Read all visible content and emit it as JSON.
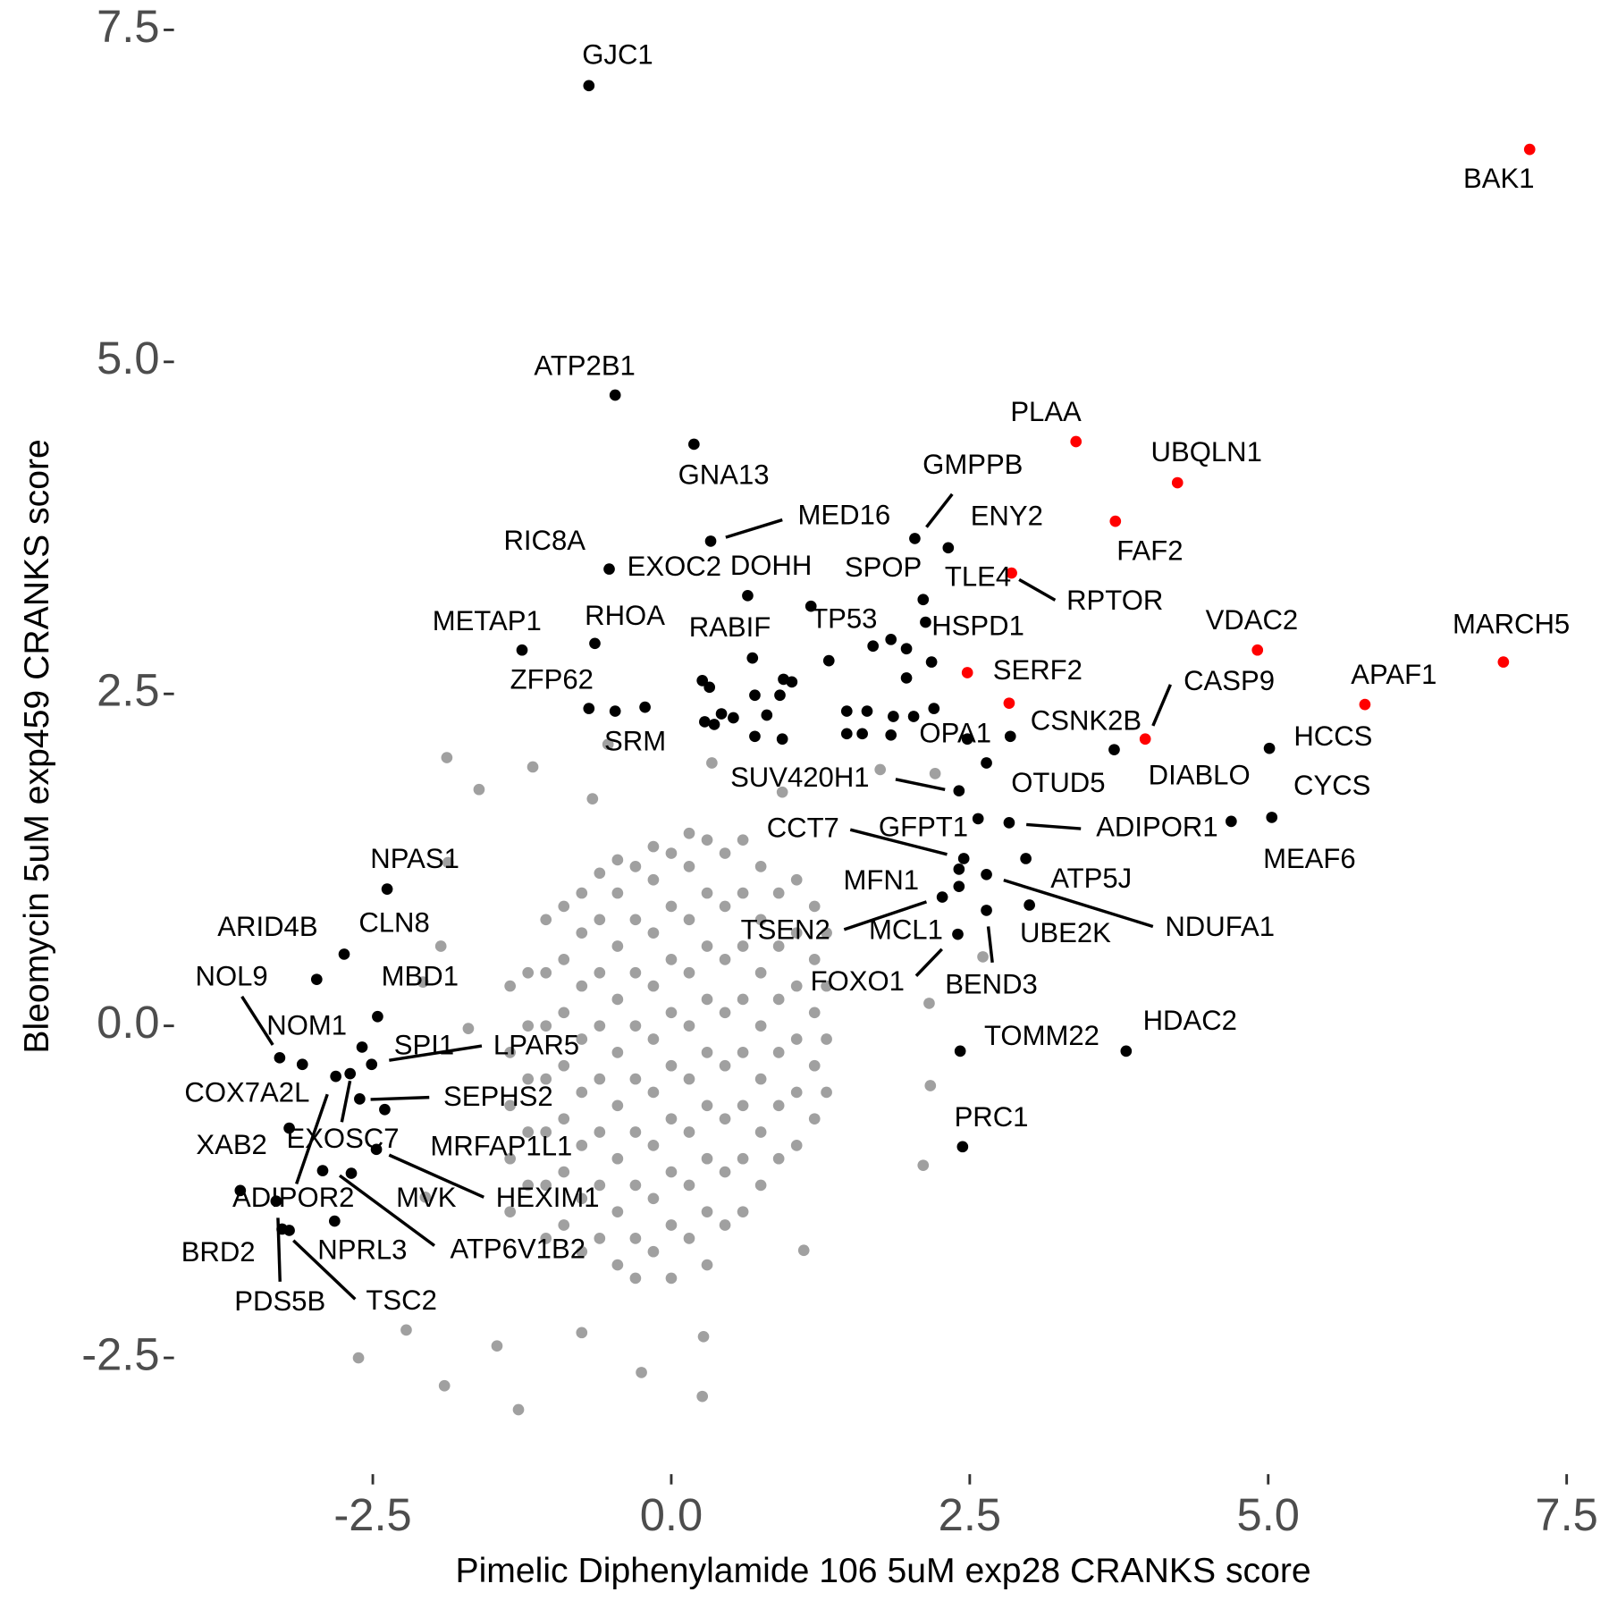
{
  "chart_data": {
    "type": "scatter",
    "xlabel": "Pimelic Diphenylamide 106 5uM exp28 CRANKS score",
    "ylabel": "Bleomycin 5uM exp459 CRANKS score",
    "xlim": [
      -4.2,
      7.57
    ],
    "ylim": [
      -3.36,
      7.57
    ],
    "xticks": [
      -2.5,
      {
        "value": 0,
        "label": "0.0"
      },
      2.5,
      {
        "value": 5,
        "label": "5.0"
      },
      7.5
    ],
    "yticks": [
      -2.5,
      {
        "value": 0,
        "label": "0.0"
      },
      2.5,
      {
        "value": 5,
        "label": "5.0"
      },
      7.5
    ],
    "grid": false,
    "series": [
      {
        "color": "#a0a0a0",
        "x": [
          -1.35,
          -1.35,
          -1.35,
          -1.35,
          -1.35,
          -1.05,
          -1.05,
          -1.05,
          -1.05,
          -1.05,
          -1.05,
          -1.05,
          -0.75,
          -0.75,
          -0.75,
          -0.75,
          -0.75,
          -0.75,
          -0.75,
          -0.75,
          -0.45,
          -0.45,
          -0.45,
          -0.45,
          -0.45,
          -0.45,
          -0.45,
          -0.45,
          -0.45,
          -0.15,
          -0.15,
          -0.15,
          -0.15,
          -0.15,
          -0.15,
          -0.15,
          -0.15,
          -0.15,
          0.15,
          0.15,
          0.15,
          0.15,
          0.15,
          0.15,
          0.15,
          0.15,
          0.15,
          0.45,
          0.45,
          0.45,
          0.45,
          0.45,
          0.45,
          0.45,
          0.45,
          0.75,
          0.75,
          0.75,
          0.75,
          0.75,
          0.75,
          0.75,
          1.05,
          1.05,
          1.05,
          1.05,
          1.05,
          1.05,
          1.3,
          1.3,
          1.3,
          1.3,
          -1.2,
          -1.2,
          -1.2,
          -1.2,
          -1.2,
          -0.9,
          -0.9,
          -0.9,
          -0.9,
          -0.9,
          -0.9,
          -0.9,
          -0.6,
          -0.6,
          -0.6,
          -0.6,
          -0.6,
          -0.6,
          -0.6,
          -0.6,
          -0.3,
          -0.3,
          -0.3,
          -0.3,
          -0.3,
          -0.3,
          -0.3,
          -0.3,
          -0.3,
          0,
          0,
          0,
          0,
          0,
          0,
          0,
          0,
          0,
          0.3,
          0.3,
          0.3,
          0.3,
          0.3,
          0.3,
          0.3,
          0.3,
          0.3,
          0.6,
          0.6,
          0.6,
          0.6,
          0.6,
          0.6,
          0.6,
          0.6,
          0.9,
          0.9,
          0.9,
          0.9,
          0.9,
          0.9,
          1.2,
          1.2,
          1.2,
          1.2,
          1.2,
          -1.88,
          -1.16,
          -1.61,
          -0.66,
          -0.53,
          0.34,
          0.93,
          1.75,
          2.21,
          -1.87,
          -1.93,
          -2.08,
          -1.7,
          2.16,
          2.17,
          2.11,
          -2.62,
          -1.9,
          -1.28,
          -0.25,
          0.26,
          -2.22,
          -1.46,
          -0.75,
          0.27,
          1.11,
          -2.06,
          2.61
        ],
        "values": [
          -1.4,
          -1.0,
          -0.6,
          -0.2,
          0.3,
          -1.6,
          -1.2,
          -0.8,
          -0.4,
          0.0,
          0.4,
          0.8,
          -1.7,
          -1.3,
          -0.9,
          -0.5,
          -0.1,
          0.3,
          0.7,
          1.0,
          -1.8,
          -1.4,
          -1.0,
          -0.6,
          -0.2,
          0.2,
          0.6,
          1.0,
          1.25,
          -1.7,
          -1.3,
          -0.9,
          -0.5,
          -0.1,
          0.3,
          0.7,
          1.1,
          1.35,
          -1.6,
          -1.2,
          -0.8,
          -0.4,
          0.0,
          0.4,
          0.8,
          1.2,
          1.45,
          -1.5,
          -1.1,
          -0.7,
          -0.3,
          0.1,
          0.5,
          0.9,
          1.3,
          -1.2,
          -0.8,
          -0.4,
          0.0,
          0.4,
          0.8,
          1.2,
          -0.9,
          -0.5,
          -0.1,
          0.3,
          0.7,
          1.1,
          -0.5,
          -0.1,
          0.3,
          0.7,
          -1.2,
          -0.8,
          -0.4,
          0.0,
          0.4,
          -1.5,
          -1.1,
          -0.7,
          -0.3,
          0.1,
          0.5,
          0.9,
          -1.6,
          -1.2,
          -0.8,
          -0.4,
          0.0,
          0.4,
          0.8,
          1.15,
          -1.9,
          -1.6,
          -1.2,
          -0.8,
          -0.4,
          0.0,
          0.4,
          0.8,
          1.2,
          -1.9,
          -1.5,
          -1.1,
          -0.7,
          -0.3,
          0.1,
          0.5,
          0.9,
          1.3,
          -1.8,
          -1.4,
          -1.0,
          -0.6,
          -0.2,
          0.2,
          0.6,
          1.0,
          1.4,
          -1.4,
          -1.0,
          -0.6,
          -0.2,
          0.2,
          0.6,
          1.0,
          1.4,
          -1.0,
          -0.6,
          -0.2,
          0.2,
          0.6,
          1.0,
          -0.7,
          -0.3,
          0.1,
          0.5,
          0.9,
          2.02,
          1.95,
          1.78,
          1.71,
          2.12,
          1.98,
          1.76,
          1.93,
          1.9,
          1.23,
          0.6,
          0.33,
          -0.02,
          0.17,
          -0.45,
          -1.05,
          -2.5,
          -2.71,
          -2.89,
          -2.61,
          -2.79,
          -2.29,
          -2.41,
          -2.31,
          -2.34,
          -1.69,
          -1.29,
          0.52
        ]
      },
      {
        "color": "#000000",
        "x": [
          -0.69,
          -0.47,
          0.19,
          2.04,
          0.33,
          2.32,
          -0.52,
          0.64,
          1.17,
          2.11,
          2.13,
          1.32,
          2.18,
          -1.25,
          -0.64,
          0.68,
          -0.69,
          -0.47,
          2.48,
          2.84,
          3.71,
          5.01,
          5.03,
          4.69,
          2.64,
          2.41,
          2.83,
          2.57,
          2.45,
          2.97,
          2.41,
          2.64,
          2.27,
          3.0,
          2.41,
          2.64,
          2.4,
          -2.38,
          -2.74,
          -2.97,
          -3.28,
          -2.46,
          -3.09,
          -2.59,
          -2.51,
          -3.2,
          -2.61,
          -3.61,
          -2.69,
          -2.4,
          -2.47,
          -2.81,
          -2.68,
          -2.92,
          -2.82,
          -3.31,
          -3.26,
          -3.2,
          2.42,
          3.81,
          2.44,
          -0.22,
          0.26,
          0.32,
          0.28,
          0.36,
          0.42,
          0.52,
          0.7,
          0.8,
          0.7,
          0.91,
          0.94,
          1.01,
          0.93,
          1.47,
          1.64,
          1.47,
          1.6,
          1.84,
          1.86,
          2.03,
          2.2,
          1.69,
          1.84,
          1.97,
          1.97
        ],
        "values": [
          7.08,
          4.75,
          4.38,
          3.67,
          3.65,
          3.6,
          3.44,
          3.24,
          3.16,
          3.21,
          3.04,
          2.75,
          2.74,
          2.83,
          2.88,
          2.77,
          2.39,
          2.37,
          2.16,
          2.18,
          2.08,
          2.09,
          1.57,
          1.54,
          1.98,
          1.77,
          1.53,
          1.56,
          1.26,
          1.26,
          1.18,
          1.14,
          0.97,
          0.91,
          1.05,
          0.87,
          0.69,
          1.03,
          0.54,
          0.35,
          -0.24,
          0.07,
          -0.29,
          -0.16,
          -0.29,
          -0.77,
          -0.55,
          -1.24,
          -0.36,
          -0.63,
          -0.93,
          -0.38,
          -1.11,
          -1.09,
          -1.47,
          -1.32,
          -1.53,
          -1.54,
          -0.19,
          -0.19,
          -0.91,
          2.4,
          2.6,
          2.55,
          2.29,
          2.27,
          2.35,
          2.32,
          2.18,
          2.34,
          2.49,
          2.49,
          2.61,
          2.59,
          2.16,
          2.37,
          2.37,
          2.2,
          2.2,
          2.19,
          2.33,
          2.33,
          2.39,
          2.86,
          2.91,
          2.84,
          2.62
        ],
        "labels": [
          "GJC1",
          "ATP2B1",
          "GNA13",
          "GMPPB",
          "MED16",
          "ENY2",
          "RIC8A",
          "EXOC2",
          "DOHH",
          "SPOP",
          "TLE4",
          "TP53",
          "HSPD1",
          "METAP1",
          "RHOA",
          "RABIF",
          "ZFP62",
          "SRM",
          "OPA1",
          "CSNK2B",
          "DIABLO",
          "HCCS",
          "CYCS",
          "MEAF6",
          "OTUD5",
          "SUV420H1",
          "ADIPOR1",
          "GFPT1",
          "CCT7",
          "ATP5J",
          "MFN1",
          "NDUFA1",
          "TSEN2",
          "UBE2K",
          "MCL1",
          "BEND3",
          "FOXO1",
          "NPAS1",
          "CLN8",
          "ARID4B",
          "NOL9",
          "MBD1",
          "NOM1",
          "SPI1",
          "LPAR5",
          "COX7A2L",
          "SEPHS2",
          "XAB2",
          "EXOSC7",
          "MRFAP1L1",
          "HEXIM1",
          "ADIPOR2",
          "MVK",
          "ATP6V1B2",
          "NPRL3",
          "BRD2",
          "PDS5B",
          "TSC2",
          "TOMM22",
          "HDAC2",
          "PRC1",
          null,
          null,
          null,
          null,
          null,
          null,
          null,
          null,
          null,
          null,
          null,
          null,
          null,
          null,
          null,
          null,
          null,
          null,
          null,
          null,
          null,
          null,
          null,
          null,
          null,
          null
        ]
      },
      {
        "color": "#ff0000",
        "x": [
          7.19,
          3.39,
          4.24,
          3.72,
          2.85,
          4.91,
          6.97,
          2.48,
          5.81,
          3.97,
          2.83
        ],
        "values": [
          6.6,
          4.4,
          4.09,
          3.8,
          3.41,
          2.83,
          2.74,
          2.66,
          2.42,
          2.16,
          2.43
        ],
        "labels": [
          "BAK1",
          "PLAA",
          "UBQLN1",
          "FAF2",
          "RPTOR",
          "VDAC2",
          "MARCH5",
          "SERF2",
          "APAF1",
          "CASP9",
          null
        ]
      }
    ]
  }
}
